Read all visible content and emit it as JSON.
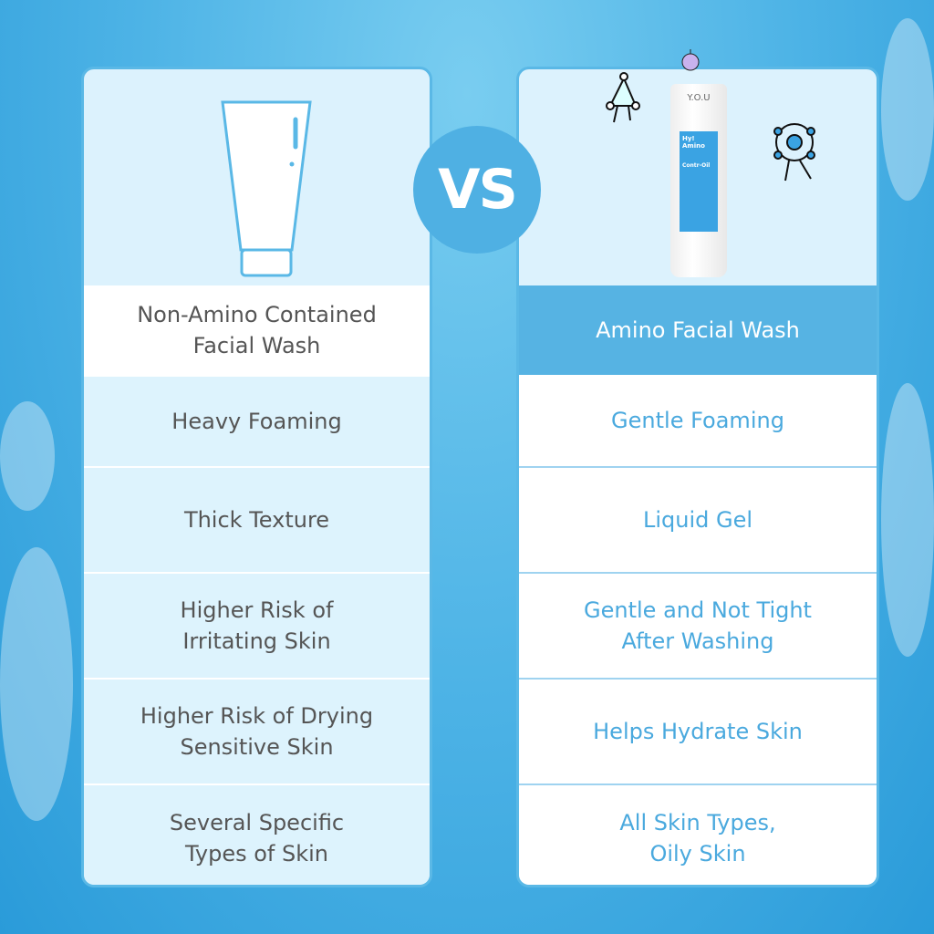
{
  "vs_label": "VS",
  "left": {
    "title": "Non-Amino Contained\nFacial Wash",
    "rows": [
      "Heavy Foaming",
      "Thick Texture",
      "Higher Risk of Irritating Skin",
      "Higher Risk of Drying Sensitive Skin",
      "Several Specific Types of Skin"
    ]
  },
  "right": {
    "title": "Amino Facial Wash",
    "product": {
      "brand": "Y.O.U",
      "name": "Hy! Amino",
      "variant": "Contr-Oil"
    },
    "rows": [
      "Gentle Foaming",
      "Liquid Gel",
      "Gentle and Not Tight After Washing",
      "Helps Hydrate Skin",
      "All Skin Types, Oily Skin"
    ]
  },
  "colors": {
    "accent": "#4fb0e3",
    "text_dark": "#555555",
    "text_blue": "#4aa9de"
  }
}
